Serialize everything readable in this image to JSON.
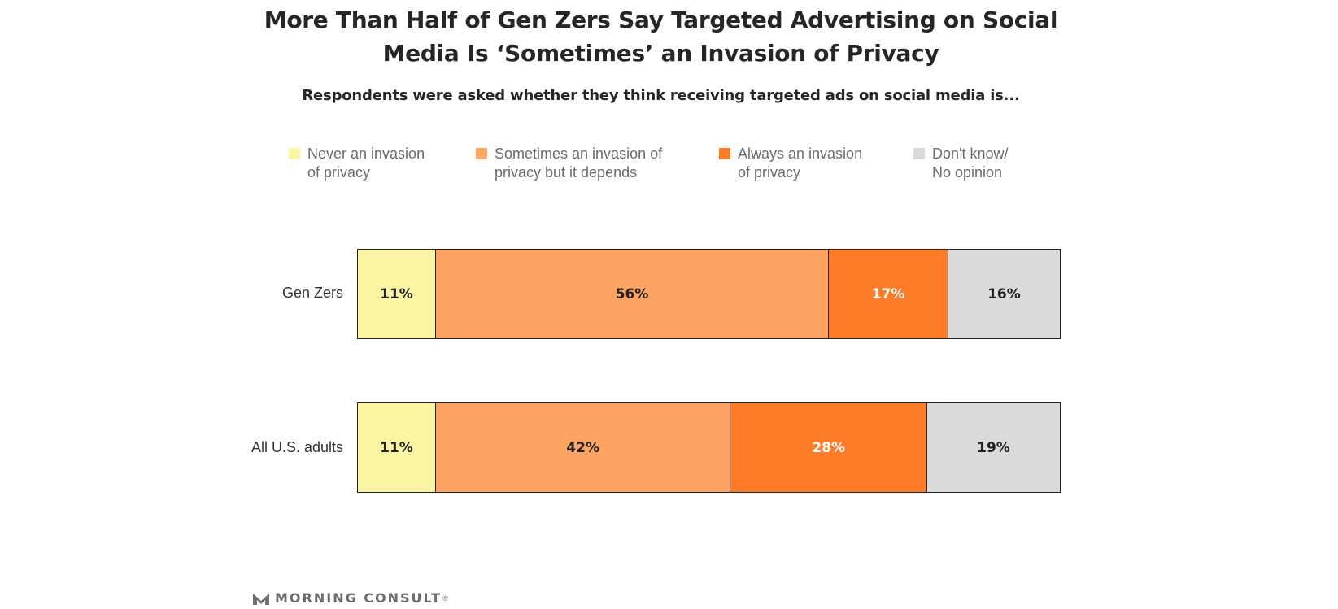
{
  "header": {
    "title_lines": [
      "More Than Half of Gen Zers Say Targeted Advertising on Social",
      "Media Is ‘Sometimes’ an Invasion of Privacy"
    ],
    "subtitle": "Respondents were asked whether they think receiving targeted ads on social media is..."
  },
  "legend": [
    {
      "lines": [
        "Never an invasion",
        "of privacy"
      ],
      "color": "#fbf4a2"
    },
    {
      "lines": [
        "Sometimes an invasion of",
        "privacy but it depends"
      ],
      "color": "#fea462"
    },
    {
      "lines": [
        "Always an invasion",
        "of privacy"
      ],
      "color": "#fe7c27"
    },
    {
      "lines": [
        "Don't know/",
        "No opinion"
      ],
      "color": "#d8dadb"
    }
  ],
  "chart_data": {
    "type": "bar",
    "orientation": "horizontal",
    "stacked": true,
    "categories": [
      "Gen Zers",
      "All U.S. adults"
    ],
    "series": [
      {
        "name": "Never an invasion of privacy",
        "values": [
          11,
          11
        ],
        "labels": [
          "11%",
          "11%"
        ],
        "color": "#fbf4a2",
        "label_color": "#222222"
      },
      {
        "name": "Sometimes an invasion of privacy but it depends",
        "values": [
          56,
          42
        ],
        "labels": [
          "56%",
          "42%"
        ],
        "color": "#fea462",
        "label_color": "#222222"
      },
      {
        "name": "Always an invasion of privacy",
        "values": [
          17,
          28
        ],
        "labels": [
          "17%",
          "28%"
        ],
        "color": "#fe7c27",
        "label_color": "#ffffff"
      },
      {
        "name": "Don't know/No opinion",
        "values": [
          16,
          19
        ],
        "labels": [
          "16%",
          "19%"
        ],
        "color": "#d8dadb",
        "label_color": "#222222"
      }
    ],
    "title": "More Than Half of Gen Zers Say Targeted Advertising on Social Media Is ‘Sometimes’ an Invasion of Privacy",
    "subtitle": "Respondents were asked whether they think receiving targeted ads on social media is...",
    "legend_position": "top",
    "grid": false
  },
  "brand": {
    "name": "MORNING CONSULT",
    "mark": "®",
    "logo_icon": "morning-consult-logo-icon",
    "color": "#6e6e6e"
  }
}
